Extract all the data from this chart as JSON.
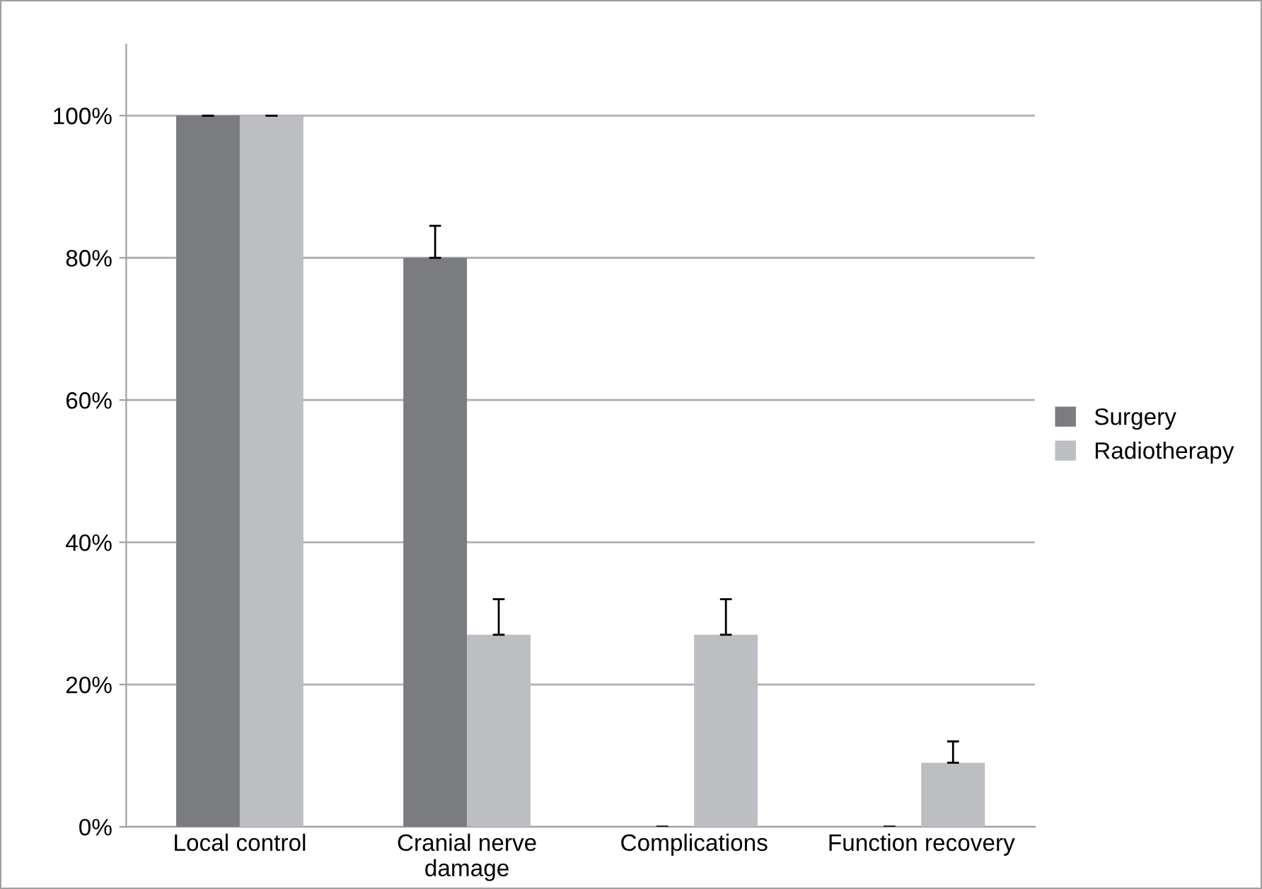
{
  "chart_data": {
    "type": "bar",
    "categories": [
      "Local control",
      "Cranial nerve\ndamage",
      "Complications",
      "Function recovery"
    ],
    "series": [
      {
        "name": "Surgery",
        "color": "#7b7c80",
        "values": [
          100,
          80,
          0,
          0
        ],
        "errors": [
          [
            100,
            100
          ],
          [
            80,
            84.5
          ],
          [
            0,
            0
          ],
          [
            0,
            0
          ]
        ]
      },
      {
        "name": "Radiotherapy",
        "color": "#bdbec2",
        "values": [
          100,
          27,
          27,
          9
        ],
        "errors": [
          [
            100,
            100
          ],
          [
            27,
            32
          ],
          [
            27,
            32
          ],
          [
            9,
            12
          ]
        ]
      }
    ],
    "ylim": [
      0,
      110
    ],
    "yticks": [
      {
        "value": 0,
        "label": "0%"
      },
      {
        "value": 20,
        "label": "20%"
      },
      {
        "value": 40,
        "label": "40%"
      },
      {
        "value": 60,
        "label": "60%"
      },
      {
        "value": 80,
        "label": "80%"
      },
      {
        "value": 100,
        "label": "100%"
      }
    ],
    "grid": "y",
    "legend": "right"
  }
}
